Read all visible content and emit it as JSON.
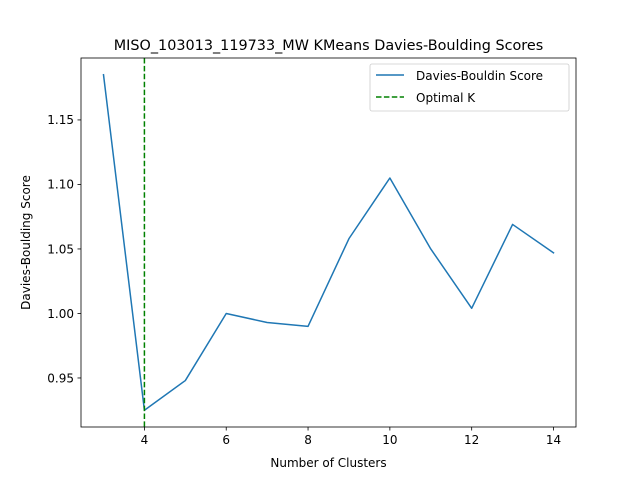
{
  "chart_data": {
    "type": "line",
    "title": "MISO_103013_119733_MW KMeans Davies-Boulding Scores",
    "xlabel": "Number of Clusters",
    "ylabel": "Davies-Boulding Score",
    "xlim": [
      2.45,
      14.55
    ],
    "ylim": [
      0.912,
      1.198
    ],
    "xticks": [
      4,
      6,
      8,
      10,
      12,
      14
    ],
    "yticks": [
      0.95,
      1.0,
      1.05,
      1.1,
      1.15
    ],
    "ytick_labels": [
      "0.95",
      "1.00",
      "1.05",
      "1.10",
      "1.15"
    ],
    "grid": false,
    "legend_position": "top-right",
    "series": [
      {
        "name": "Davies-Bouldin Score",
        "color": "#1f77b4",
        "style": "solid",
        "x": [
          3,
          4,
          5,
          6,
          7,
          8,
          9,
          10,
          11,
          12,
          13,
          14
        ],
        "y": [
          1.185,
          0.925,
          0.948,
          1.0,
          0.993,
          0.99,
          1.058,
          1.105,
          1.05,
          1.004,
          1.069,
          1.047
        ]
      }
    ],
    "vline": {
      "name": "Optimal K",
      "x": 4,
      "color": "#008000",
      "style": "dashed"
    }
  }
}
